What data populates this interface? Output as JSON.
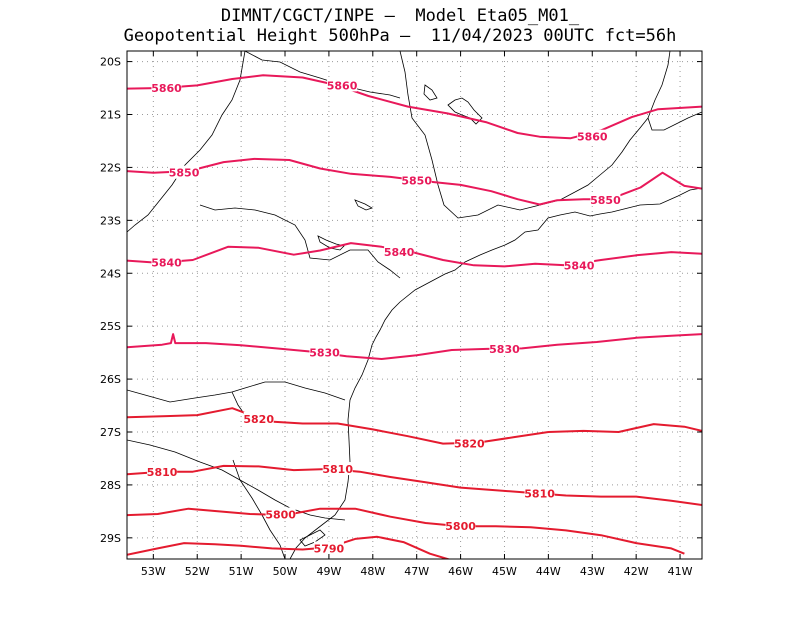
{
  "title": {
    "line1": "DIMNT/CGCT/INPE –  Model Eta05_M01_",
    "line2": "Geopotential Height 500hPa –  11/04/2023 00UTC fct=56h"
  },
  "map": {
    "lon_range": [
      -53.6,
      -40.5
    ],
    "lat_range": [
      -29.4,
      -19.8
    ],
    "lon_ticks": [
      -53,
      -52,
      -51,
      -50,
      -49,
      -48,
      -47,
      -46,
      -45,
      -44,
      -43,
      -42,
      -41
    ],
    "lon_labels": [
      "53W",
      "52W",
      "51W",
      "50W",
      "49W",
      "48W",
      "47W",
      "46W",
      "45W",
      "44W",
      "43W",
      "42W",
      "41W"
    ],
    "lat_ticks": [
      -20,
      -21,
      -22,
      -23,
      -24,
      -25,
      -26,
      -27,
      -28,
      -29
    ],
    "lat_labels": [
      "20S",
      "21S",
      "22S",
      "23S",
      "24S",
      "25S",
      "26S",
      "27S",
      "28S",
      "29S"
    ],
    "grid": true
  },
  "contours": [
    {
      "level": "5860",
      "color": "#e8195a",
      "points": [
        [
          -53.6,
          -20.51
        ],
        [
          -52.8,
          -20.5
        ],
        [
          -52.0,
          -20.45
        ],
        [
          -51.2,
          -20.33
        ],
        [
          -50.5,
          -20.26
        ],
        [
          -49.6,
          -20.3
        ],
        [
          -48.8,
          -20.45
        ],
        [
          -48.1,
          -20.65
        ],
        [
          -47.2,
          -20.85
        ],
        [
          -46.3,
          -20.98
        ],
        [
          -45.4,
          -21.15
        ],
        [
          -44.7,
          -21.35
        ],
        [
          -44.2,
          -21.42
        ],
        [
          -43.5,
          -21.45
        ],
        [
          -42.8,
          -21.3
        ],
        [
          -42.1,
          -21.05
        ],
        [
          -41.5,
          -20.9
        ],
        [
          -40.5,
          -20.85
        ]
      ],
      "labels": [
        [
          -52.7,
          -20.5
        ],
        [
          -48.7,
          -20.45
        ],
        [
          -43.0,
          -21.42
        ]
      ]
    },
    {
      "level": "5850",
      "color": "#e8195a",
      "points": [
        [
          -53.6,
          -22.07
        ],
        [
          -53.0,
          -22.1
        ],
        [
          -52.2,
          -22.07
        ],
        [
          -51.4,
          -21.9
        ],
        [
          -50.7,
          -21.84
        ],
        [
          -49.9,
          -21.86
        ],
        [
          -49.2,
          -22.02
        ],
        [
          -48.5,
          -22.12
        ],
        [
          -47.6,
          -22.18
        ],
        [
          -46.8,
          -22.26
        ],
        [
          -46.0,
          -22.33
        ],
        [
          -45.3,
          -22.45
        ],
        [
          -44.7,
          -22.6
        ],
        [
          -44.2,
          -22.7
        ],
        [
          -43.8,
          -22.62
        ],
        [
          -43.2,
          -22.6
        ],
        [
          -42.6,
          -22.6
        ],
        [
          -41.9,
          -22.38
        ],
        [
          -41.4,
          -22.1
        ],
        [
          -40.9,
          -22.35
        ],
        [
          -40.5,
          -22.4
        ]
      ],
      "labels": [
        [
          -52.3,
          -22.1
        ],
        [
          -47.0,
          -22.25
        ],
        [
          -42.7,
          -22.62
        ]
      ]
    },
    {
      "level": "5840",
      "color": "#e8195a",
      "points": [
        [
          -53.6,
          -23.76
        ],
        [
          -52.9,
          -23.8
        ],
        [
          -52.1,
          -23.75
        ],
        [
          -51.3,
          -23.5
        ],
        [
          -50.6,
          -23.52
        ],
        [
          -49.8,
          -23.65
        ],
        [
          -49.2,
          -23.57
        ],
        [
          -48.5,
          -23.43
        ],
        [
          -47.8,
          -23.5
        ],
        [
          -47.1,
          -23.6
        ],
        [
          -46.4,
          -23.75
        ],
        [
          -45.7,
          -23.85
        ],
        [
          -45.0,
          -23.87
        ],
        [
          -44.3,
          -23.82
        ],
        [
          -43.6,
          -23.85
        ],
        [
          -42.8,
          -23.75
        ],
        [
          -42.0,
          -23.66
        ],
        [
          -41.2,
          -23.6
        ],
        [
          -40.5,
          -23.63
        ]
      ],
      "labels": [
        [
          -52.7,
          -23.8
        ],
        [
          -47.4,
          -23.6
        ],
        [
          -43.3,
          -23.85
        ]
      ]
    },
    {
      "level": "5830",
      "color": "#e8195a",
      "points": [
        [
          -53.6,
          -25.4
        ],
        [
          -52.8,
          -25.35
        ],
        [
          -52.6,
          -25.32
        ],
        [
          -52.55,
          -25.15
        ],
        [
          -52.5,
          -25.32
        ],
        [
          -51.8,
          -25.32
        ],
        [
          -51.0,
          -25.36
        ],
        [
          -50.2,
          -25.42
        ],
        [
          -49.4,
          -25.48
        ],
        [
          -48.6,
          -25.57
        ],
        [
          -47.8,
          -25.62
        ],
        [
          -47.0,
          -25.55
        ],
        [
          -46.2,
          -25.45
        ],
        [
          -45.4,
          -25.43
        ],
        [
          -44.6,
          -25.42
        ],
        [
          -43.8,
          -25.35
        ],
        [
          -42.9,
          -25.3
        ],
        [
          -42.0,
          -25.22
        ],
        [
          -41.2,
          -25.18
        ],
        [
          -40.5,
          -25.15
        ]
      ],
      "labels": [
        [
          -49.1,
          -25.5
        ],
        [
          -45.0,
          -25.43
        ]
      ]
    },
    {
      "level": "5820",
      "color": "#e41b2f",
      "points": [
        [
          -53.6,
          -26.72
        ],
        [
          -52.7,
          -26.7
        ],
        [
          -52.0,
          -26.68
        ],
        [
          -51.2,
          -26.55
        ],
        [
          -50.4,
          -26.8
        ],
        [
          -49.6,
          -26.84
        ],
        [
          -48.8,
          -26.84
        ],
        [
          -48.0,
          -26.95
        ],
        [
          -47.2,
          -27.08
        ],
        [
          -46.4,
          -27.22
        ],
        [
          -45.6,
          -27.2
        ],
        [
          -44.8,
          -27.1
        ],
        [
          -44.0,
          -27.0
        ],
        [
          -43.2,
          -26.98
        ],
        [
          -42.4,
          -27.0
        ],
        [
          -41.6,
          -26.85
        ],
        [
          -40.9,
          -26.9
        ],
        [
          -40.5,
          -26.98
        ]
      ],
      "labels": [
        [
          -50.6,
          -26.75
        ],
        [
          -45.8,
          -27.22
        ]
      ]
    },
    {
      "level": "5810",
      "color": "#e41b2f",
      "points": [
        [
          -53.6,
          -27.8
        ],
        [
          -52.8,
          -27.75
        ],
        [
          -52.1,
          -27.75
        ],
        [
          -51.4,
          -27.64
        ],
        [
          -50.6,
          -27.65
        ],
        [
          -49.8,
          -27.72
        ],
        [
          -49.0,
          -27.7
        ],
        [
          -48.3,
          -27.75
        ],
        [
          -47.6,
          -27.85
        ],
        [
          -46.8,
          -27.95
        ],
        [
          -46.0,
          -28.05
        ],
        [
          -45.2,
          -28.1
        ],
        [
          -44.4,
          -28.15
        ],
        [
          -43.6,
          -28.2
        ],
        [
          -42.8,
          -28.22
        ],
        [
          -42.0,
          -28.22
        ],
        [
          -41.2,
          -28.3
        ],
        [
          -40.5,
          -28.38
        ]
      ],
      "labels": [
        [
          -52.8,
          -27.76
        ],
        [
          -48.8,
          -27.7
        ],
        [
          -44.2,
          -28.16
        ]
      ]
    },
    {
      "level": "5800",
      "color": "#e41b2f",
      "points": [
        [
          -53.6,
          -28.57
        ],
        [
          -52.9,
          -28.55
        ],
        [
          -52.2,
          -28.45
        ],
        [
          -51.5,
          -28.5
        ],
        [
          -50.8,
          -28.55
        ],
        [
          -50.0,
          -28.57
        ],
        [
          -49.2,
          -28.45
        ],
        [
          -48.4,
          -28.45
        ],
        [
          -47.6,
          -28.6
        ],
        [
          -46.8,
          -28.72
        ],
        [
          -46.0,
          -28.78
        ],
        [
          -45.2,
          -28.78
        ],
        [
          -44.4,
          -28.8
        ],
        [
          -43.6,
          -28.86
        ],
        [
          -42.8,
          -28.95
        ],
        [
          -42.0,
          -29.1
        ],
        [
          -41.2,
          -29.2
        ],
        [
          -40.9,
          -29.3
        ]
      ],
      "labels": [
        [
          -50.1,
          -28.56
        ],
        [
          -46.0,
          -28.78
        ]
      ]
    },
    {
      "level": "5790",
      "color": "#e41b2f",
      "points": [
        [
          -53.6,
          -29.32
        ],
        [
          -52.9,
          -29.2
        ],
        [
          -52.3,
          -29.1
        ],
        [
          -51.6,
          -29.12
        ],
        [
          -51.0,
          -29.15
        ],
        [
          -50.3,
          -29.2
        ],
        [
          -49.6,
          -29.22
        ],
        [
          -49.0,
          -29.18
        ],
        [
          -48.4,
          -29.02
        ],
        [
          -47.9,
          -28.98
        ],
        [
          -47.3,
          -29.08
        ],
        [
          -46.7,
          -29.3
        ],
        [
          -46.1,
          -29.45
        ]
      ],
      "labels": [
        [
          -49.0,
          -29.2
        ]
      ]
    }
  ]
}
